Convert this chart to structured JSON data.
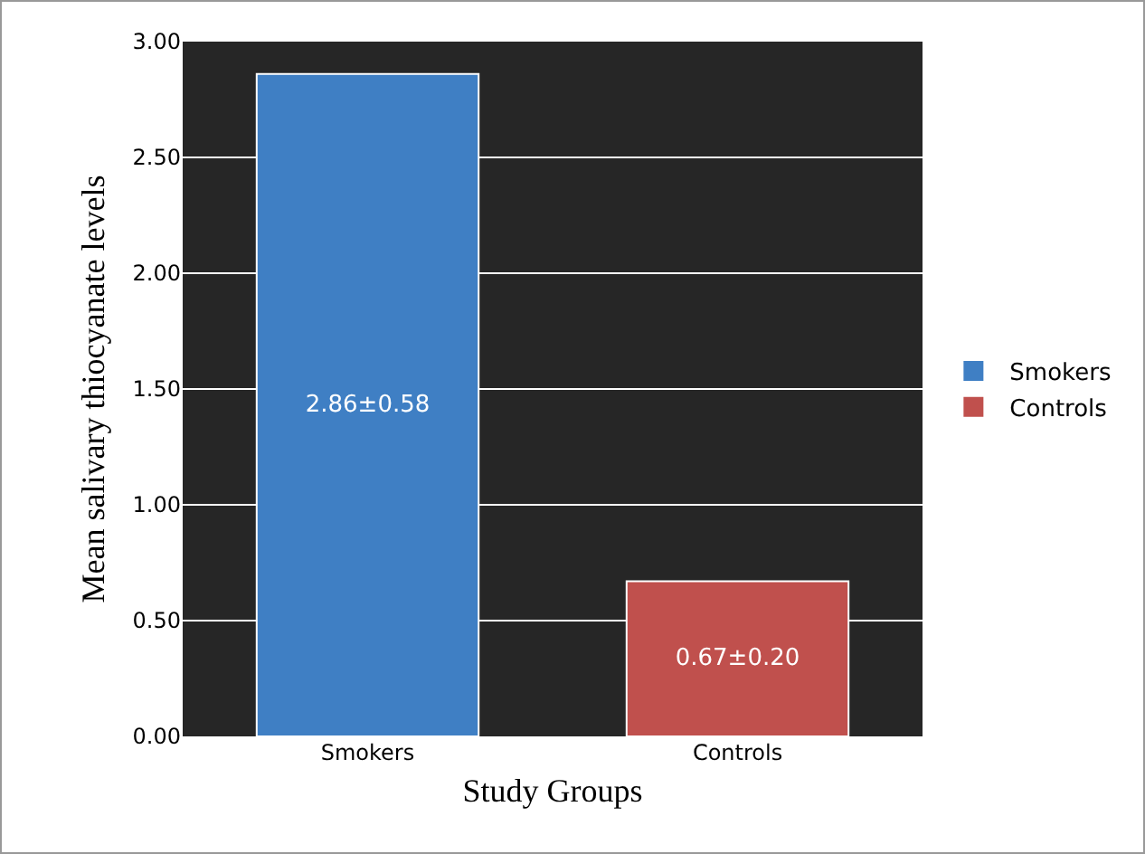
{
  "chart_data": {
    "type": "bar",
    "xlabel": "Study Groups",
    "ylabel": "Mean salivary thiocyanate levels",
    "categories": [
      "Smokers",
      "Controls"
    ],
    "series": [
      {
        "name": "Smokers",
        "color": "#3f7fc4",
        "values": [
          2.86,
          null
        ],
        "value_labels": [
          "2.86±0.58",
          null
        ]
      },
      {
        "name": "Controls",
        "color": "#c0504d",
        "values": [
          null,
          0.67
        ],
        "value_labels": [
          null,
          "0.67±0.20"
        ]
      }
    ],
    "ylim": [
      0,
      3
    ],
    "yticks": [
      {
        "value": 0,
        "label": "0.00"
      },
      {
        "value": 0.5,
        "label": "0.50"
      },
      {
        "value": 1,
        "label": "1.00"
      },
      {
        "value": 1.5,
        "label": "1.50"
      },
      {
        "value": 2,
        "label": "2.00"
      },
      {
        "value": 2.5,
        "label": "2.50"
      },
      {
        "value": 3,
        "label": "3.00"
      }
    ],
    "grid": "y",
    "legend": "right"
  }
}
